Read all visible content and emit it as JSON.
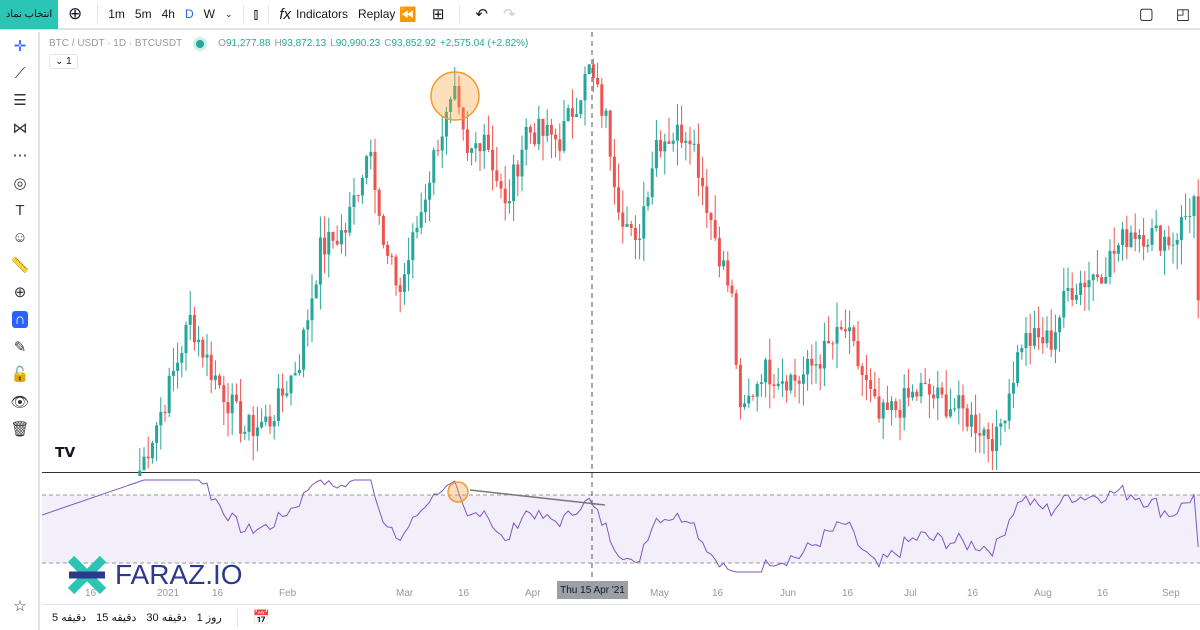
{
  "toolbar": {
    "symbol_button": "انتخاب نماد",
    "intervals": [
      "1m",
      "5m",
      "4h",
      "D",
      "W"
    ],
    "active_interval": "D",
    "indicators": "Indicators",
    "replay": "Replay"
  },
  "legend": {
    "symbol": "BTC / USDT · 1D · BTCUSDT",
    "open_label": "O",
    "open": "91,277.88",
    "high_label": "H",
    "high": "93,872.13",
    "low_label": "L",
    "low": "90,990.23",
    "close_label": "C",
    "close": "93,852.92",
    "change": "+2,575.04 (+2.82%)",
    "collapse": "1"
  },
  "axis": {
    "labels": [
      "16",
      "2021",
      "16",
      "Feb",
      "Mar",
      "16",
      "Apr",
      "May",
      "16",
      "Jun",
      "16",
      "Jul",
      "16",
      "Aug",
      "16",
      "Sep"
    ],
    "crosshair_label": "Thu 15 Apr '21"
  },
  "bottom": {
    "ranges": [
      "5 دقیقه",
      "15 دقیقه",
      "30 دقیقه",
      "1 روز"
    ]
  },
  "logo": {
    "text": "FARAZ.IO"
  },
  "colors": {
    "up": "#26a69a",
    "down": "#ef5350",
    "rsi": "#7e57c2",
    "accent": "#2962ff"
  },
  "chart_data": {
    "type": "candlestick",
    "note": "approximate daily close path (day offset from Jan 1 2021, USDT)",
    "key_points": [
      [
        -6,
        28000
      ],
      [
        0,
        34100
      ],
      [
        6,
        41200
      ],
      [
        11,
        36800
      ],
      [
        19,
        31500
      ],
      [
        25,
        32400
      ],
      [
        32,
        37700
      ],
      [
        37,
        47300
      ],
      [
        43,
        49100
      ],
      [
        49,
        57000
      ],
      [
        52,
        47300
      ],
      [
        56,
        43800
      ],
      [
        61,
        50800
      ],
      [
        65,
        57000
      ],
      [
        69,
        60500
      ],
      [
        72,
        55200
      ],
      [
        76,
        57900
      ],
      [
        81,
        50800
      ],
      [
        86,
        57900
      ],
      [
        94,
        57000
      ],
      [
        101,
        63100
      ],
      [
        105,
        58700
      ],
      [
        108,
        51700
      ],
      [
        112,
        47300
      ],
      [
        117,
        57000
      ],
      [
        125,
        57900
      ],
      [
        130,
        50000
      ],
      [
        135,
        42900
      ],
      [
        137,
        32400
      ],
      [
        142,
        36800
      ],
      [
        151,
        35900
      ],
      [
        162,
        40300
      ],
      [
        170,
        32400
      ],
      [
        180,
        35000
      ],
      [
        189,
        33300
      ],
      [
        198,
        30600
      ],
      [
        204,
        39400
      ],
      [
        211,
        39400
      ],
      [
        215,
        43800
      ],
      [
        223,
        45600
      ],
      [
        230,
        49100
      ],
      [
        240,
        48200
      ],
      [
        245,
        51700
      ],
      [
        246,
        42900
      ]
    ],
    "rsi_levels": [
      70,
      30
    ]
  }
}
